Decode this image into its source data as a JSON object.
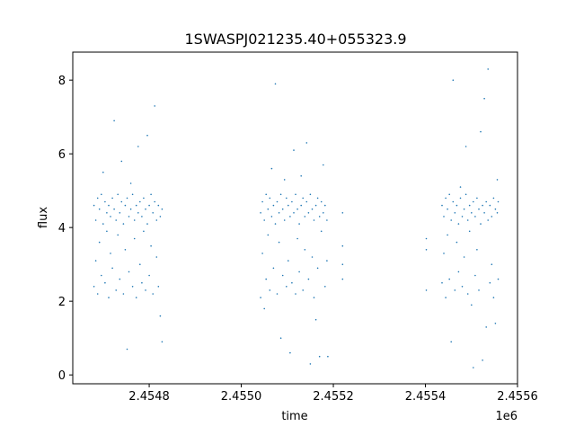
{
  "chart_data": {
    "type": "scatter",
    "title": "1SWASPJ021235.40+055323.9",
    "xlabel": "time",
    "ylabel": "flux",
    "x_offset_label": "1e6",
    "xlim": [
      2454634,
      2455600
    ],
    "ylim": [
      -0.24,
      8.76
    ],
    "xticks": [
      2454800,
      2455000,
      2455200,
      2455400,
      2455600
    ],
    "xtick_labels": [
      "2.4548",
      "2.4550",
      "2.4552",
      "2.4554",
      "2.4556"
    ],
    "yticks": [
      0,
      2,
      4,
      6,
      8
    ],
    "ytick_labels": [
      "0",
      "2",
      "4",
      "6",
      "8"
    ],
    "grid": false,
    "color": "#1f77b4",
    "points": [
      [
        2454680,
        4.6
      ],
      [
        2454680,
        2.4
      ],
      [
        2454684,
        4.2
      ],
      [
        2454684,
        3.1
      ],
      [
        2454688,
        4.8
      ],
      [
        2454688,
        2.2
      ],
      [
        2454692,
        4.5
      ],
      [
        2454692,
        3.6
      ],
      [
        2454696,
        4.9
      ],
      [
        2454696,
        2.7
      ],
      [
        2454700,
        4.1
      ],
      [
        2454700,
        5.5
      ],
      [
        2454704,
        4.7
      ],
      [
        2454704,
        2.5
      ],
      [
        2454708,
        3.9
      ],
      [
        2454708,
        4.4
      ],
      [
        2454712,
        4.6
      ],
      [
        2454712,
        2.1
      ],
      [
        2454716,
        4.3
      ],
      [
        2454716,
        3.3
      ],
      [
        2454720,
        4.8
      ],
      [
        2454720,
        2.9
      ],
      [
        2454724,
        4.5
      ],
      [
        2454724,
        6.9
      ],
      [
        2454728,
        4.2
      ],
      [
        2454728,
        2.3
      ],
      [
        2454732,
        4.9
      ],
      [
        2454732,
        3.8
      ],
      [
        2454736,
        4.4
      ],
      [
        2454736,
        2.6
      ],
      [
        2454740,
        4.7
      ],
      [
        2454740,
        5.8
      ],
      [
        2454744,
        4.1
      ],
      [
        2454744,
        2.2
      ],
      [
        2454748,
        4.6
      ],
      [
        2454748,
        3.4
      ],
      [
        2454752,
        4.8
      ],
      [
        2454752,
        0.7
      ],
      [
        2454756,
        4.3
      ],
      [
        2454756,
        2.8
      ],
      [
        2454760,
        4.5
      ],
      [
        2454760,
        5.2
      ],
      [
        2454764,
        4.9
      ],
      [
        2454764,
        2.4
      ],
      [
        2454768,
        4.2
      ],
      [
        2454768,
        3.7
      ],
      [
        2454772,
        4.6
      ],
      [
        2454772,
        2.1
      ],
      [
        2454776,
        4.4
      ],
      [
        2454776,
        6.2
      ],
      [
        2454780,
        4.7
      ],
      [
        2454780,
        3.0
      ],
      [
        2454784,
        4.3
      ],
      [
        2454784,
        2.5
      ],
      [
        2454788,
        4.8
      ],
      [
        2454788,
        3.9
      ],
      [
        2454792,
        4.5
      ],
      [
        2454792,
        2.3
      ],
      [
        2454796,
        4.1
      ],
      [
        2454796,
        6.5
      ],
      [
        2454800,
        4.6
      ],
      [
        2454800,
        2.7
      ],
      [
        2454804,
        4.9
      ],
      [
        2454804,
        3.5
      ],
      [
        2454808,
        4.4
      ],
      [
        2454808,
        2.2
      ],
      [
        2454812,
        4.7
      ],
      [
        2454812,
        7.3
      ],
      [
        2454816,
        4.2
      ],
      [
        2454816,
        3.2
      ],
      [
        2454820,
        4.6
      ],
      [
        2454820,
        2.4
      ],
      [
        2454824,
        4.3
      ],
      [
        2454824,
        1.6
      ],
      [
        2454828,
        4.5
      ],
      [
        2454828,
        0.9
      ],
      [
        2455042,
        4.4
      ],
      [
        2455042,
        2.1
      ],
      [
        2455046,
        4.7
      ],
      [
        2455046,
        3.3
      ],
      [
        2455050,
        4.2
      ],
      [
        2455050,
        1.8
      ],
      [
        2455054,
        4.9
      ],
      [
        2455054,
        2.6
      ],
      [
        2455058,
        4.5
      ],
      [
        2455058,
        3.8
      ],
      [
        2455062,
        4.8
      ],
      [
        2455062,
        2.3
      ],
      [
        2455066,
        4.3
      ],
      [
        2455066,
        5.6
      ],
      [
        2455070,
        4.6
      ],
      [
        2455070,
        2.9
      ],
      [
        2455074,
        4.1
      ],
      [
        2455074,
        7.9
      ],
      [
        2455078,
        4.7
      ],
      [
        2455078,
        2.2
      ],
      [
        2455082,
        4.4
      ],
      [
        2455082,
        3.6
      ],
      [
        2455086,
        4.9
      ],
      [
        2455086,
        1.0
      ],
      [
        2455090,
        4.5
      ],
      [
        2455090,
        2.7
      ],
      [
        2455094,
        4.2
      ],
      [
        2455094,
        5.3
      ],
      [
        2455098,
        4.8
      ],
      [
        2455098,
        2.4
      ],
      [
        2455102,
        4.6
      ],
      [
        2455102,
        3.1
      ],
      [
        2455106,
        4.3
      ],
      [
        2455106,
        0.6
      ],
      [
        2455110,
        4.7
      ],
      [
        2455110,
        2.5
      ],
      [
        2455114,
        4.4
      ],
      [
        2455114,
        6.1
      ],
      [
        2455118,
        4.9
      ],
      [
        2455118,
        2.2
      ],
      [
        2455122,
        4.5
      ],
      [
        2455122,
        3.7
      ],
      [
        2455126,
        4.1
      ],
      [
        2455126,
        2.8
      ],
      [
        2455130,
        4.6
      ],
      [
        2455130,
        5.4
      ],
      [
        2455134,
        4.8
      ],
      [
        2455134,
        2.3
      ],
      [
        2455138,
        4.3
      ],
      [
        2455138,
        3.4
      ],
      [
        2455142,
        4.7
      ],
      [
        2455142,
        6.3
      ],
      [
        2455146,
        4.4
      ],
      [
        2455146,
        2.6
      ],
      [
        2455150,
        4.9
      ],
      [
        2455150,
        0.3
      ],
      [
        2455154,
        4.5
      ],
      [
        2455154,
        3.2
      ],
      [
        2455158,
        4.2
      ],
      [
        2455158,
        2.1
      ],
      [
        2455162,
        4.6
      ],
      [
        2455162,
        1.5
      ],
      [
        2455166,
        4.8
      ],
      [
        2455166,
        2.9
      ],
      [
        2455170,
        4.3
      ],
      [
        2455170,
        0.5
      ],
      [
        2455174,
        4.7
      ],
      [
        2455174,
        3.9
      ],
      [
        2455178,
        4.4
      ],
      [
        2455178,
        5.7
      ],
      [
        2455182,
        4.6
      ],
      [
        2455182,
        2.4
      ],
      [
        2455186,
        4.2
      ],
      [
        2455186,
        3.1
      ],
      [
        2455188,
        0.5
      ],
      [
        2455220,
        4.4
      ],
      [
        2455220,
        2.6
      ],
      [
        2455220,
        3.5
      ],
      [
        2455220,
        3.0
      ],
      [
        2455402,
        3.7
      ],
      [
        2455402,
        3.4
      ],
      [
        2455402,
        2.3
      ],
      [
        2455436,
        4.6
      ],
      [
        2455436,
        2.5
      ],
      [
        2455440,
        4.3
      ],
      [
        2455440,
        3.3
      ],
      [
        2455444,
        4.8
      ],
      [
        2455444,
        2.1
      ],
      [
        2455448,
        4.5
      ],
      [
        2455448,
        3.8
      ],
      [
        2455452,
        4.9
      ],
      [
        2455452,
        2.6
      ],
      [
        2455456,
        4.2
      ],
      [
        2455456,
        0.9
      ],
      [
        2455460,
        4.7
      ],
      [
        2455460,
        8.0
      ],
      [
        2455464,
        4.4
      ],
      [
        2455464,
        2.3
      ],
      [
        2455468,
        4.6
      ],
      [
        2455468,
        3.6
      ],
      [
        2455472,
        4.1
      ],
      [
        2455472,
        2.8
      ],
      [
        2455476,
        4.8
      ],
      [
        2455476,
        5.1
      ],
      [
        2455480,
        4.3
      ],
      [
        2455480,
        2.4
      ],
      [
        2455484,
        4.5
      ],
      [
        2455484,
        3.2
      ],
      [
        2455488,
        4.9
      ],
      [
        2455488,
        6.2
      ],
      [
        2455492,
        4.2
      ],
      [
        2455492,
        2.2
      ],
      [
        2455496,
        4.6
      ],
      [
        2455496,
        3.9
      ],
      [
        2455500,
        4.4
      ],
      [
        2455500,
        1.9
      ],
      [
        2455504,
        4.7
      ],
      [
        2455504,
        0.2
      ],
      [
        2455508,
        4.3
      ],
      [
        2455508,
        2.7
      ],
      [
        2455512,
        4.8
      ],
      [
        2455512,
        3.4
      ],
      [
        2455516,
        4.5
      ],
      [
        2455516,
        2.3
      ],
      [
        2455520,
        4.1
      ],
      [
        2455520,
        6.6
      ],
      [
        2455524,
        4.6
      ],
      [
        2455524,
        0.4
      ],
      [
        2455528,
        4.4
      ],
      [
        2455528,
        7.5
      ],
      [
        2455532,
        4.7
      ],
      [
        2455532,
        1.3
      ],
      [
        2455536,
        4.2
      ],
      [
        2455536,
        8.3
      ],
      [
        2455540,
        4.6
      ],
      [
        2455540,
        2.5
      ],
      [
        2455544,
        4.3
      ],
      [
        2455544,
        3.0
      ],
      [
        2455548,
        4.8
      ],
      [
        2455548,
        2.1
      ],
      [
        2455552,
        4.5
      ],
      [
        2455552,
        1.4
      ],
      [
        2455556,
        4.4
      ],
      [
        2455556,
        5.3
      ],
      [
        2455558,
        4.7
      ],
      [
        2455558,
        2.6
      ]
    ]
  }
}
